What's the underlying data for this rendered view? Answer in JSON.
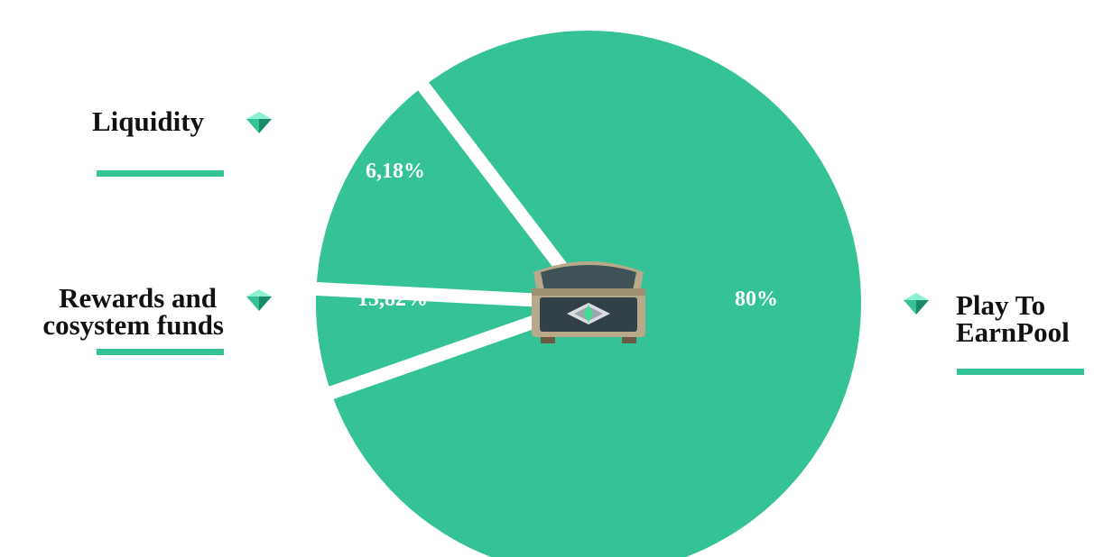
{
  "colors": {
    "slice": "#35c296",
    "separator": "#ffffff",
    "legend_bar": "#35c296",
    "legend_text": "#111111",
    "slice_label_text": "#ffffff"
  },
  "icons": {
    "legend_marker": "diamond-gem-icon",
    "center": "treasure-chest-icon"
  },
  "chart_data": {
    "type": "pie",
    "categories": [
      "Play To EarnPool",
      "Liquidity",
      "Rewards and cosystem funds"
    ],
    "values": [
      80,
      6.18,
      13.82
    ],
    "data_labels": [
      "80%",
      "6,18%",
      "13,82%"
    ],
    "legend": [
      {
        "line1": "Liquidity",
        "line2": ""
      },
      {
        "line1": "Rewards and",
        "line2": "cosystem funds"
      },
      {
        "line1": "Play To",
        "line2": "EarnPool"
      }
    ]
  }
}
